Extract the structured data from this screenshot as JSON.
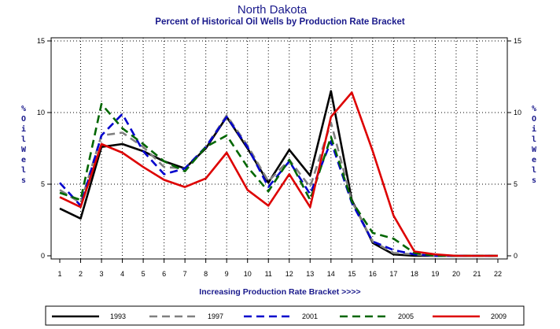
{
  "chart_data": {
    "type": "line",
    "title": "North Dakota",
    "subtitle": "Percent of Historical Oil Wells by Production Rate Bracket",
    "xlabel": "Increasing Production Rate Bracket >>>>",
    "ylabel": "% Oil Wells",
    "ylabel_left": "% O i l W e l s",
    "ylabel_right": "% O i l W e l s",
    "x": [
      1,
      2,
      3,
      4,
      5,
      6,
      7,
      8,
      9,
      10,
      11,
      12,
      13,
      14,
      15,
      16,
      17,
      18,
      19,
      20,
      21,
      22
    ],
    "xticks": [
      "1",
      "2",
      "3",
      "4",
      "5",
      "6",
      "7",
      "8",
      "9",
      "10",
      "11",
      "12",
      "13",
      "14",
      "15",
      "16",
      "17",
      "18",
      "19",
      "20",
      "21",
      "22"
    ],
    "xlim": [
      1,
      22
    ],
    "ylim": [
      0,
      15
    ],
    "yticks": [
      "0",
      "5",
      "10",
      "15"
    ],
    "ytick_values": [
      0,
      5,
      10,
      15
    ],
    "grid": true,
    "legend_position": "bottom",
    "series": [
      {
        "name": "1993",
        "color": "#000000",
        "dash": "solid",
        "values": [
          3.3,
          2.6,
          7.6,
          7.8,
          7.3,
          6.6,
          6.1,
          7.5,
          9.7,
          7.5,
          5.1,
          7.4,
          5.6,
          11.5,
          3.9,
          0.9,
          0.1,
          0.0,
          0.0,
          0.0,
          0.0,
          0.0
        ]
      },
      {
        "name": "1997",
        "color": "#808080",
        "dash": "dashed",
        "values": [
          4.6,
          3.7,
          8.4,
          8.6,
          7.6,
          6.2,
          6.1,
          7.6,
          9.8,
          7.7,
          5.2,
          6.7,
          4.8,
          9.3,
          3.8,
          1.0,
          0.2,
          0.1,
          0.0,
          0.0,
          0.0,
          0.0
        ]
      },
      {
        "name": "2001",
        "color": "#0000cc",
        "dash": "dashed",
        "values": [
          5.1,
          3.5,
          8.4,
          9.9,
          7.3,
          5.7,
          6.1,
          7.6,
          9.7,
          7.6,
          4.8,
          6.6,
          4.3,
          8.0,
          3.7,
          1.0,
          0.4,
          0.1,
          0.0,
          0.0,
          0.0,
          0.0
        ]
      },
      {
        "name": "2005",
        "color": "#006600",
        "dash": "dashed",
        "values": [
          4.4,
          3.9,
          10.6,
          8.9,
          7.8,
          6.6,
          5.9,
          7.6,
          8.4,
          6.2,
          4.5,
          6.7,
          3.9,
          8.3,
          3.8,
          1.6,
          1.2,
          0.2,
          0.0,
          0.0,
          0.0,
          0.0
        ]
      },
      {
        "name": "2009",
        "color": "#dd0000",
        "dash": "solid",
        "values": [
          4.1,
          3.4,
          7.8,
          7.2,
          6.2,
          5.3,
          4.8,
          5.4,
          7.2,
          4.6,
          3.5,
          5.7,
          3.4,
          9.7,
          11.4,
          7.3,
          2.8,
          0.3,
          0.1,
          0.0,
          0.0,
          0.0
        ]
      }
    ]
  }
}
